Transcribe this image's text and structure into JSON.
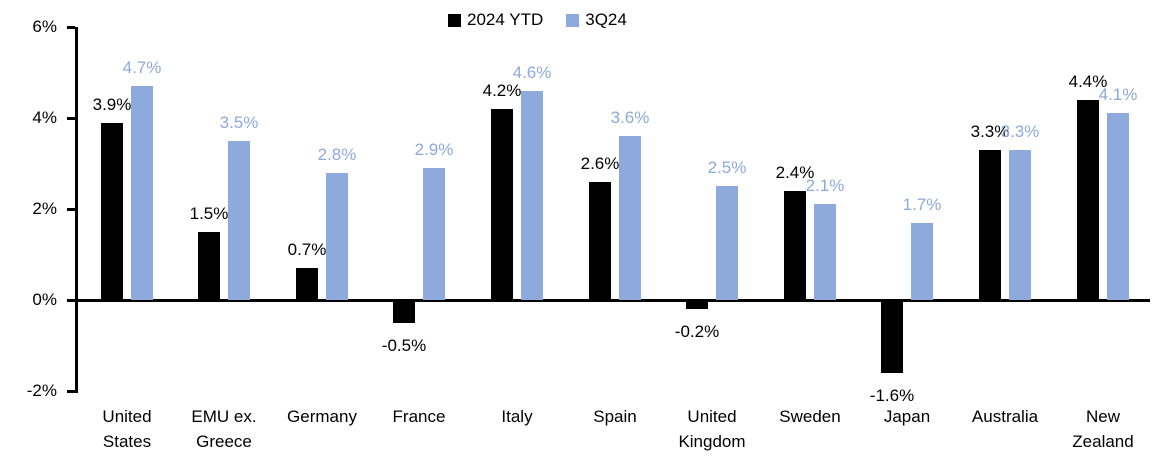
{
  "chart_data": {
    "type": "bar",
    "title": "",
    "categories": [
      "United States",
      "EMU ex. Greece",
      "Germany",
      "France",
      "Italy",
      "Spain",
      "United Kingdom",
      "Sweden",
      "Japan",
      "Australia",
      "New Zealand"
    ],
    "category_lines": [
      [
        "United",
        "States"
      ],
      [
        "EMU ex.",
        "Greece"
      ],
      [
        "Germany"
      ],
      [
        "France"
      ],
      [
        "Italy"
      ],
      [
        "Spain"
      ],
      [
        "United",
        "Kingdom"
      ],
      [
        "Sweden"
      ],
      [
        "Japan"
      ],
      [
        "Australia"
      ],
      [
        "New",
        "Zealand"
      ]
    ],
    "series": [
      {
        "name": "2024 YTD",
        "color": "#000000",
        "values": [
          3.9,
          1.5,
          0.7,
          -0.5,
          4.2,
          2.6,
          -0.2,
          2.4,
          -1.6,
          3.3,
          4.4
        ],
        "labels": [
          "3.9%",
          "1.5%",
          "0.7%",
          "-0.5%",
          "4.2%",
          "2.6%",
          "-0.2%",
          "2.4%",
          "-1.6%",
          "3.3%",
          "4.4%"
        ]
      },
      {
        "name": "3Q24",
        "color": "#8EA9DB",
        "values": [
          4.7,
          3.5,
          2.8,
          2.9,
          4.6,
          3.6,
          2.5,
          2.1,
          1.7,
          3.3,
          4.1
        ],
        "labels": [
          "4.7%",
          "3.5%",
          "2.8%",
          "2.9%",
          "4.6%",
          "3.6%",
          "2.5%",
          "2.1%",
          "1.7%",
          "3.3%",
          "4.1%"
        ]
      }
    ],
    "yticks": [
      {
        "v": 6,
        "label": "6%"
      },
      {
        "v": 4,
        "label": "4%"
      },
      {
        "v": 2,
        "label": "2%"
      },
      {
        "v": 0,
        "label": "0%"
      },
      {
        "v": -2,
        "label": "-2%"
      }
    ],
    "ylim": [
      -2,
      6
    ],
    "xlabel": "",
    "ylabel": "",
    "grid": false,
    "legend_position": "top-center",
    "axis_color": "#000000",
    "background": "#FFFFFF"
  }
}
